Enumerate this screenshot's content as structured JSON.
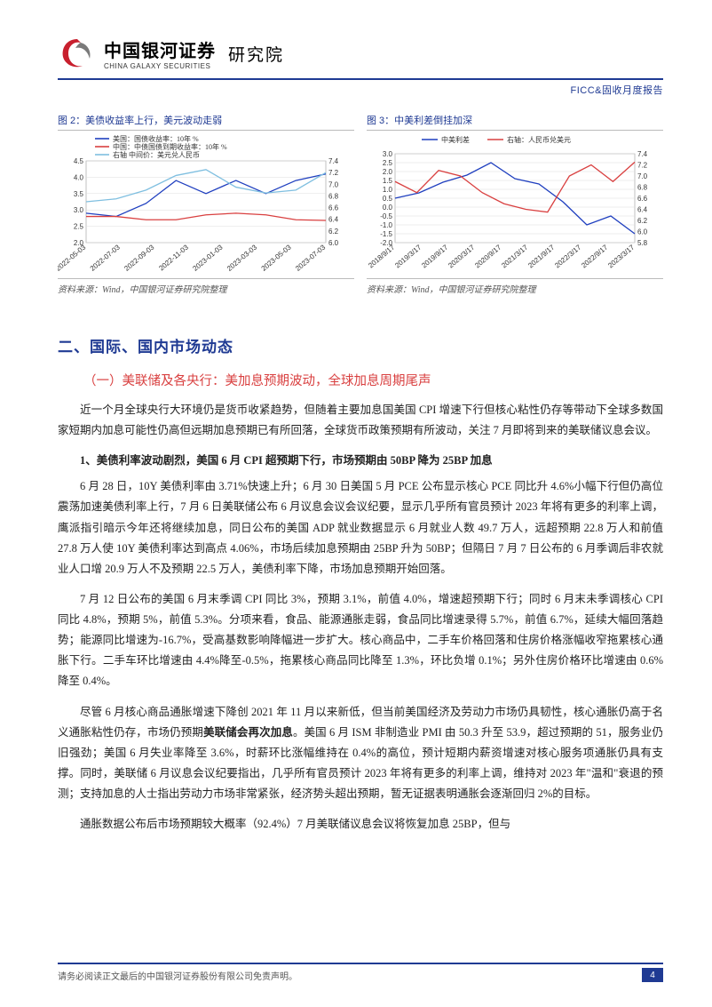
{
  "header": {
    "company_cn": "中国银河证券",
    "company_en": "CHINA GALAXY SECURITIES",
    "institute": "研究院",
    "right_label": "FICC&固收月度报告",
    "logo_colors": {
      "red": "#c8202e",
      "gray": "#7a7a7a"
    }
  },
  "chart_left": {
    "title": "图 2：美债收益率上行，美元波动走弱",
    "source": "资料来源：Wind，中国银河证券研究院整理",
    "type": "line",
    "legend": [
      {
        "label": "美国：国债收益率：10年 %",
        "color": "#1f3fbf"
      },
      {
        "label": "中国：中债国债到期收益率：10年 %",
        "color": "#d94040"
      },
      {
        "label": "右轴 中间价：美元兑人民币",
        "color": "#7fbfe0"
      }
    ],
    "y_left": {
      "min": 2.0,
      "max": 4.5,
      "step": 0.5
    },
    "y_right": {
      "min": 6.0,
      "max": 7.4,
      "step": 0.2
    },
    "x_labels": [
      "2022-05-03",
      "2022-07-03",
      "2022-09-03",
      "2022-11-03",
      "2023-01-03",
      "2023-03-03",
      "2023-05-03",
      "2023-07-03"
    ],
    "series_left_1": [
      2.9,
      2.8,
      3.2,
      3.9,
      3.5,
      3.9,
      3.5,
      3.9,
      4.1
    ],
    "series_left_2": [
      2.8,
      2.8,
      2.7,
      2.7,
      2.85,
      2.9,
      2.85,
      2.7,
      2.68
    ],
    "series_right": [
      6.7,
      6.75,
      6.9,
      7.15,
      7.25,
      6.95,
      6.85,
      6.9,
      7.2
    ],
    "background": "#ffffff",
    "grid_color": "#dcdcdc",
    "line_width": 1.3
  },
  "chart_right": {
    "title": "图 3：中美利差倒挂加深",
    "source": "资料来源：Wind，中国银河证券研究院整理",
    "type": "line",
    "legend": [
      {
        "label": "中美利差",
        "color": "#1f3fbf"
      },
      {
        "label": "右轴：人民币兑美元",
        "color": "#d94040"
      }
    ],
    "y_left": {
      "min": -2.0,
      "max": 3.0,
      "step": 0.5
    },
    "y_right": {
      "min": 5.8,
      "max": 7.4,
      "step": 0.2
    },
    "x_labels": [
      "2018/9/17",
      "2019/3/17",
      "2019/9/17",
      "2020/3/17",
      "2020/9/17",
      "2021/3/17",
      "2021/9/17",
      "2022/3/17",
      "2022/9/17",
      "2023/3/17"
    ],
    "series_left": [
      0.5,
      0.8,
      1.4,
      1.8,
      2.5,
      1.6,
      1.3,
      0.3,
      -1.0,
      -0.5,
      -1.5
    ],
    "series_right": [
      6.9,
      6.7,
      7.1,
      7.0,
      6.7,
      6.5,
      6.4,
      6.35,
      7.0,
      7.2,
      6.9,
      7.25
    ],
    "background": "#ffffff",
    "grid_color": "#dcdcdc",
    "line_width": 1.3
  },
  "section": {
    "h1": "二、国际、国内市场动态",
    "h2": "（一）美联储及各央行：美加息预期波动，全球加息周期尾声",
    "p1": "近一个月全球央行大环境仍是货币收紧趋势，但随着主要加息国美国 CPI 增速下行但核心粘性仍存等带动下全球多数国家短期内加息可能性仍高但远期加息预期已有所回落，全球货币政策预期有所波动，关注 7 月即将到来的美联储议息会议。",
    "sub1": "1、美债利率波动剧烈，美国 6 月 CPI 超预期下行，市场预期由 50BP 降为 25BP 加息",
    "p2": "6 月 28 日，10Y 美债利率由 3.71%快速上升；6 月 30 日美国 5 月 PCE 公布显示核心 PCE 同比升 4.6%小幅下行但仍高位震荡加速美债利率上行，7 月 6 日美联储公布 6 月议息会议会议纪要，显示几乎所有官员预计 2023 年将有更多的利率上调，鹰派指引暗示今年还将继续加息，同日公布的美国 ADP 就业数据显示 6 月就业人数 49.7 万人，远超预期 22.8 万人和前值 27.8 万人使 10Y 美债利率达到高点 4.06%，市场后续加息预期由 25BP 升为 50BP；但隔日 7 月 7 日公布的 6 月季调后非农就业人口增 20.9 万人不及预期 22.5 万人，美债利率下降，市场加息预期开始回落。",
    "p3": "7 月 12 日公布的美国 6 月末季调 CPI 同比 3%，预期 3.1%，前值 4.0%，增速超预期下行；同时 6 月末未季调核心 CPI 同比 4.8%，预期 5%，前值 5.3%。分项来看，食品、能源通胀走弱，食品同比增速录得 5.7%，前值 6.7%，延续大幅回落趋势；能源同比增速为-16.7%，受高基数影响降幅进一步扩大。核心商品中，二手车价格回落和住房价格涨幅收窄拖累核心通胀下行。二手车环比增速由 4.4%降至-0.5%，拖累核心商品同比降至 1.3%，环比负增 0.1%；另外住房价格环比增速由 0.6%降至 0.4%。",
    "p4_pre": "尽管 6 月核心商品通胀增速下降创 2021 年 11 月以来新低，但当前美国经济及劳动力市场仍具韧性，核心通胀仍高于名义通胀粘性仍存，市场仍预期",
    "p4_bold": "美联储会再次加息",
    "p4_post": "。美国 6 月 ISM 非制造业 PMI 由 50.3 升至 53.9，超过预期的 51，服务业仍旧强劲；美国 6 月失业率降至 3.6%，时薪环比涨幅维持在 0.4%的高位，预计短期内薪资增速对核心服务项通胀仍具有支撑。同时，美联储 6 月议息会议纪要指出，几乎所有官员预计 2023 年将有更多的利率上调，维持对 2023 年\"温和\"衰退的预测；支持加息的人士指出劳动力市场非常紧张，经济势头超出预期，暂无证据表明通胀会逐渐回归 2%的目标。",
    "p5": "通胀数据公布后市场预期较大概率（92.4%）7 月美联储议息会议将恢复加息 25BP，但与"
  },
  "footer": {
    "disclaimer": "请务必阅读正文最后的中国银河证券股份有限公司免责声明。",
    "page": "4"
  }
}
